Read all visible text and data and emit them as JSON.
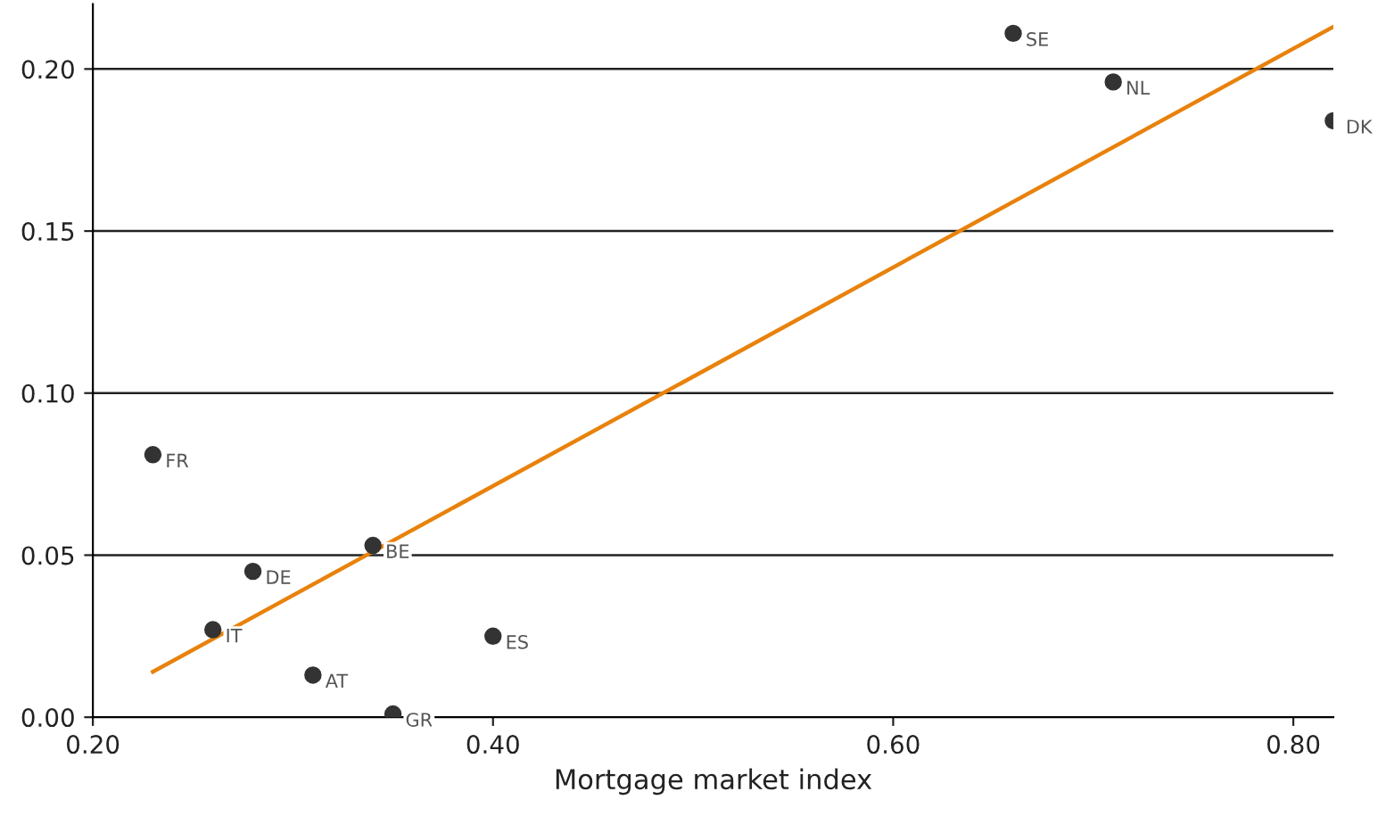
{
  "chart_data": {
    "type": "scatter",
    "xlabel": "Mortgage market index",
    "series": [
      {
        "color": "#333333",
        "marker": "circle",
        "x": [
          0.66,
          0.71,
          0.82,
          0.23,
          0.34,
          0.28,
          0.26,
          0.31,
          0.4,
          0.35
        ],
        "values": [
          0.211,
          0.196,
          0.184,
          0.081,
          0.053,
          0.045,
          0.027,
          0.013,
          0.025,
          0.001
        ]
      },
      {
        "type": "line",
        "color": "#e8820c",
        "marker": "none",
        "x": [
          0.23,
          0.82
        ],
        "values": [
          0.014,
          0.213
        ]
      }
    ],
    "annotations": [
      {
        "text": "SE",
        "x": 0.66,
        "y": 0.211
      },
      {
        "text": "NL",
        "x": 0.71,
        "y": 0.196
      },
      {
        "text": "DK",
        "x": 0.82,
        "y": 0.184
      },
      {
        "text": "FR",
        "x": 0.23,
        "y": 0.081
      },
      {
        "text": "BE",
        "x": 0.34,
        "y": 0.053
      },
      {
        "text": "DE",
        "x": 0.28,
        "y": 0.045
      },
      {
        "text": "IT",
        "x": 0.26,
        "y": 0.027
      },
      {
        "text": "AT",
        "x": 0.31,
        "y": 0.013
      },
      {
        "text": "ES",
        "x": 0.4,
        "y": 0.025
      },
      {
        "text": "GR",
        "x": 0.35,
        "y": 0.001
      }
    ],
    "xlim": [
      0.2,
      0.82
    ],
    "ylim": [
      0,
      0.22
    ],
    "xticks": [
      {
        "value": 0.2,
        "label": "0.20"
      },
      {
        "value": 0.4,
        "label": "0.40"
      },
      {
        "value": 0.6,
        "label": "0.60"
      },
      {
        "value": 0.8,
        "label": "0.80"
      }
    ],
    "yticks": [
      {
        "value": 0,
        "label": "0.00"
      },
      {
        "value": 0.05,
        "label": "0.05"
      },
      {
        "value": 0.1,
        "label": "0.10"
      },
      {
        "value": 0.15,
        "label": "0.15"
      },
      {
        "value": 0.2,
        "label": "0.20"
      }
    ],
    "grid": "y",
    "legend": false
  }
}
